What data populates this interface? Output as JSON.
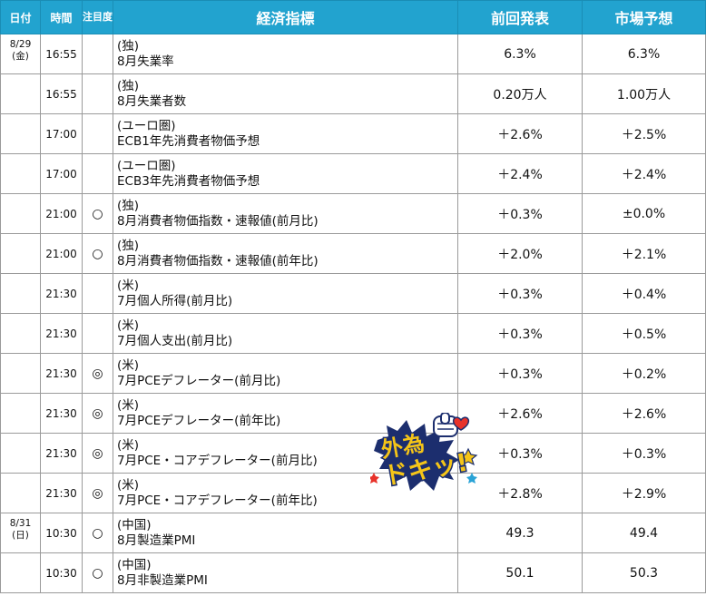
{
  "header": {
    "date": "日付",
    "time": "時間",
    "attention": "注目度",
    "indicator": "経済指標",
    "previous": "前回発表",
    "forecast": "市場予想"
  },
  "rows": [
    {
      "date": "8/29\n(金)",
      "time": "16:55",
      "attention": "",
      "region": "(独)",
      "name": "8月失業率",
      "previous": "6.3%",
      "forecast": "6.3%"
    },
    {
      "date": "",
      "time": "16:55",
      "attention": "",
      "region": "(独)",
      "name": "8月失業者数",
      "previous": "0.20万人",
      "forecast": "1.00万人"
    },
    {
      "date": "",
      "time": "17:00",
      "attention": "",
      "region": "(ユーロ圏)",
      "name": "ECB1年先消費者物価予想",
      "previous": "＋2.6%",
      "forecast": "＋2.5%"
    },
    {
      "date": "",
      "time": "17:00",
      "attention": "",
      "region": "(ユーロ圏)",
      "name": "ECB3年先消費者物価予想",
      "previous": "＋2.4%",
      "forecast": "＋2.4%"
    },
    {
      "date": "",
      "time": "21:00",
      "attention": "○",
      "region": "(独)",
      "name": "8月消費者物価指数・速報値(前月比)",
      "previous": "＋0.3%",
      "forecast": "±0.0%"
    },
    {
      "date": "",
      "time": "21:00",
      "attention": "○",
      "region": "(独)",
      "name": "8月消費者物価指数・速報値(前年比)",
      "previous": "＋2.0%",
      "forecast": "＋2.1%"
    },
    {
      "date": "",
      "time": "21:30",
      "attention": "",
      "region": "(米)",
      "name": "7月個人所得(前月比)",
      "previous": "＋0.3%",
      "forecast": "＋0.4%"
    },
    {
      "date": "",
      "time": "21:30",
      "attention": "",
      "region": "(米)",
      "name": "7月個人支出(前月比)",
      "previous": "＋0.3%",
      "forecast": "＋0.5%"
    },
    {
      "date": "",
      "time": "21:30",
      "attention": "◎",
      "region": "(米)",
      "name": "7月PCEデフレーター(前月比)",
      "previous": "＋0.3%",
      "forecast": "＋0.2%"
    },
    {
      "date": "",
      "time": "21:30",
      "attention": "◎",
      "region": "(米)",
      "name": "7月PCEデフレーター(前年比)",
      "previous": "＋2.6%",
      "forecast": "＋2.6%"
    },
    {
      "date": "",
      "time": "21:30",
      "attention": "◎",
      "region": "(米)",
      "name": "7月PCE・コアデフレーター(前月比)",
      "previous": "＋0.3%",
      "forecast": "＋0.3%"
    },
    {
      "date": "",
      "time": "21:30",
      "attention": "◎",
      "region": "(米)",
      "name": "7月PCE・コアデフレーター(前年比)",
      "previous": "＋2.8%",
      "forecast": "＋2.9%"
    },
    {
      "date": "8/31\n(日)",
      "time": "10:30",
      "attention": "○",
      "region": "(中国)",
      "name": "8月製造業PMI",
      "previous": "49.3",
      "forecast": "49.4"
    },
    {
      "date": "",
      "time": "10:30",
      "attention": "○",
      "region": "(中国)",
      "name": "8月非製造業PMI",
      "previous": "50.1",
      "forecast": "50.3"
    }
  ],
  "logo": {
    "text": "外為ドキッ!",
    "colors": {
      "fill": "#f5c518",
      "outline": "#1c2e6e",
      "accent": "#e8322a"
    }
  },
  "colors": {
    "header_bg": "#22a3cf",
    "header_text": "#ffffff",
    "border": "#9a9a9a"
  }
}
